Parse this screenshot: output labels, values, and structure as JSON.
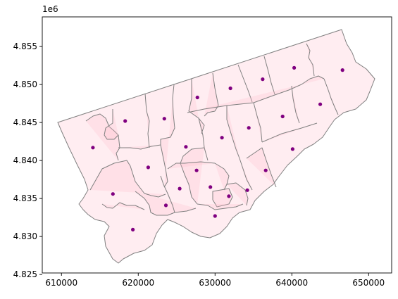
{
  "chart_data": {
    "type": "map",
    "offset_label": "1e6",
    "xlim": [
      607500,
      653000
    ],
    "ylim": [
      4825200,
      4858900
    ],
    "x_ticks": [
      610000,
      620000,
      630000,
      640000,
      650000
    ],
    "x_tick_labels": [
      "610000",
      "620000",
      "630000",
      "640000",
      "650000"
    ],
    "y_ticks": [
      4.825,
      4.83,
      4.835,
      4.84,
      4.845,
      4.85,
      4.855
    ],
    "y_tick_labels": [
      "4.825",
      "4.830",
      "4.835",
      "4.840",
      "4.845",
      "4.850",
      "4.855"
    ],
    "colors": {
      "fill": "#ffc0cb",
      "edge": "#808080",
      "centroid": "#800080"
    },
    "centroids": [
      {
        "x": 614100,
        "y": 4841700
      },
      {
        "x": 618300,
        "y": 4845200
      },
      {
        "x": 623400,
        "y": 4845500
      },
      {
        "x": 627700,
        "y": 4848300
      },
      {
        "x": 632000,
        "y": 4849500
      },
      {
        "x": 636200,
        "y": 4850700
      },
      {
        "x": 640300,
        "y": 4852200
      },
      {
        "x": 646600,
        "y": 4851900
      },
      {
        "x": 621300,
        "y": 4839100
      },
      {
        "x": 626200,
        "y": 4841800
      },
      {
        "x": 630900,
        "y": 4843000
      },
      {
        "x": 634400,
        "y": 4844300
      },
      {
        "x": 638800,
        "y": 4845800
      },
      {
        "x": 643700,
        "y": 4847400
      },
      {
        "x": 640100,
        "y": 4841500
      },
      {
        "x": 636600,
        "y": 4838700
      },
      {
        "x": 627600,
        "y": 4838700
      },
      {
        "x": 625400,
        "y": 4836300
      },
      {
        "x": 629400,
        "y": 4836500
      },
      {
        "x": 631800,
        "y": 4835300
      },
      {
        "x": 634200,
        "y": 4836100
      },
      {
        "x": 616700,
        "y": 4835600
      },
      {
        "x": 623600,
        "y": 4834100
      },
      {
        "x": 630000,
        "y": 4832700
      },
      {
        "x": 619300,
        "y": 4830900
      }
    ]
  }
}
